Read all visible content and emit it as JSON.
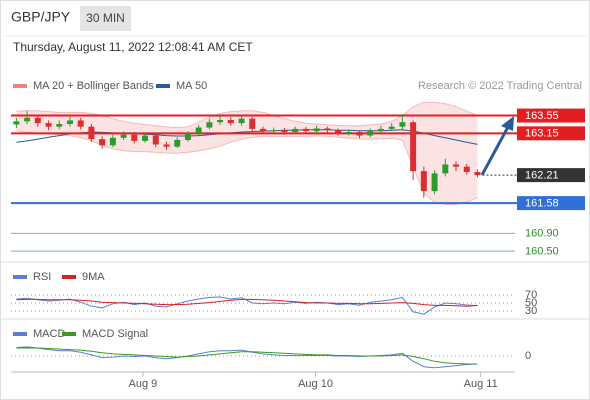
{
  "header": {
    "symbol": "GBP/JPY",
    "interval": "30 MIN",
    "timestamp": "Thursday, August 11, 2022 12:08:41 AM CET"
  },
  "chart_data": [
    {
      "type": "candlestick",
      "source": "Research © 2022 Trading Central",
      "x": [
        0,
        1,
        2,
        3,
        4,
        5,
        6,
        7,
        8,
        9,
        10,
        11,
        12,
        13,
        14,
        15,
        16,
        17,
        18,
        19,
        20,
        21,
        22,
        23,
        24,
        25,
        26,
        27,
        28,
        29,
        30,
        31,
        32,
        33,
        34,
        35,
        36,
        37,
        38,
        39,
        40,
        41,
        42,
        43
      ],
      "xlim": [
        -0.5,
        46.5
      ],
      "xticks": [
        {
          "value": 11.8,
          "label": "Aug 9"
        },
        {
          "value": 27.9,
          "label": "Aug 10"
        },
        {
          "value": 43.3,
          "label": "Aug 11"
        }
      ],
      "ylim": [
        160.3,
        163.9
      ],
      "up_color": "#2e9a2e",
      "down_color": "#d83030",
      "open": [
        163.35,
        163.42,
        163.5,
        163.38,
        163.3,
        163.36,
        163.44,
        163.3,
        163.02,
        162.88,
        163.05,
        163.12,
        162.98,
        163.1,
        162.9,
        162.85,
        163.0,
        163.15,
        163.28,
        163.4,
        163.45,
        163.38,
        163.48,
        163.25,
        163.2,
        163.22,
        163.18,
        163.25,
        163.2,
        163.26,
        163.22,
        163.15,
        163.18,
        163.1,
        163.2,
        163.25,
        163.3,
        163.4,
        162.3,
        161.85,
        162.25,
        162.45,
        162.4,
        162.28
      ],
      "high": [
        163.5,
        163.65,
        163.56,
        163.44,
        163.44,
        163.52,
        163.5,
        163.36,
        163.08,
        163.12,
        163.2,
        163.18,
        163.16,
        163.14,
        162.96,
        163.06,
        163.2,
        163.34,
        163.48,
        163.56,
        163.52,
        163.55,
        163.52,
        163.3,
        163.28,
        163.27,
        163.3,
        163.29,
        163.32,
        163.3,
        163.26,
        163.24,
        163.22,
        163.26,
        163.32,
        163.38,
        163.58,
        163.44,
        162.4,
        162.32,
        162.58,
        162.52,
        162.46,
        162.34
      ],
      "low": [
        163.27,
        163.36,
        163.3,
        163.22,
        163.24,
        163.3,
        163.24,
        162.96,
        162.8,
        162.84,
        163.0,
        162.92,
        162.94,
        162.84,
        162.78,
        162.82,
        162.96,
        163.1,
        163.24,
        163.34,
        163.32,
        163.32,
        163.2,
        163.14,
        163.15,
        163.12,
        163.14,
        163.15,
        163.16,
        163.17,
        163.1,
        163.1,
        163.04,
        163.06,
        163.16,
        163.2,
        163.24,
        162.1,
        161.7,
        161.78,
        162.18,
        162.3,
        162.22,
        162.16
      ],
      "close": [
        163.42,
        163.5,
        163.38,
        163.3,
        163.36,
        163.44,
        163.3,
        163.02,
        162.88,
        163.05,
        163.12,
        162.98,
        163.1,
        162.9,
        162.85,
        163.0,
        163.15,
        163.28,
        163.4,
        163.45,
        163.38,
        163.48,
        163.25,
        163.2,
        163.22,
        163.18,
        163.25,
        163.2,
        163.26,
        163.22,
        163.15,
        163.18,
        163.1,
        163.2,
        163.25,
        163.3,
        163.4,
        162.3,
        161.85,
        162.25,
        162.45,
        162.4,
        162.28,
        162.21
      ],
      "bands": {
        "name": "MA 20 + Bollinger Bands",
        "color": "#f08080",
        "upper": [
          163.65,
          163.66,
          163.66,
          163.64,
          163.62,
          163.62,
          163.62,
          163.6,
          163.55,
          163.48,
          163.42,
          163.38,
          163.35,
          163.32,
          163.3,
          163.28,
          163.3,
          163.4,
          163.52,
          163.6,
          163.64,
          163.66,
          163.66,
          163.62,
          163.55,
          163.48,
          163.42,
          163.38,
          163.36,
          163.34,
          163.33,
          163.32,
          163.32,
          163.34,
          163.36,
          163.42,
          163.55,
          163.75,
          163.85,
          163.85,
          163.82,
          163.75,
          163.65,
          163.55
        ],
        "lower": [
          163.2,
          163.18,
          163.16,
          163.14,
          163.12,
          163.1,
          163.05,
          162.98,
          162.88,
          162.8,
          162.76,
          162.74,
          162.74,
          162.72,
          162.7,
          162.7,
          162.72,
          162.76,
          162.8,
          162.86,
          162.95,
          163.02,
          163.06,
          163.08,
          163.08,
          163.08,
          163.08,
          163.08,
          163.09,
          163.08,
          163.06,
          163.04,
          163.02,
          163.02,
          163.03,
          163.04,
          163.0,
          162.4,
          161.8,
          161.6,
          161.55,
          161.55,
          161.6,
          161.7
        ]
      },
      "ma50": {
        "name": "MA 50",
        "color": "#2a5a9a",
        "values": [
          162.95,
          162.98,
          163.02,
          163.06,
          163.1,
          163.14,
          163.16,
          163.18,
          163.17,
          163.16,
          163.15,
          163.14,
          163.13,
          163.12,
          163.1,
          163.09,
          163.09,
          163.1,
          163.12,
          163.14,
          163.16,
          163.18,
          163.19,
          163.2,
          163.21,
          163.22,
          163.22,
          163.23,
          163.23,
          163.23,
          163.22,
          163.22,
          163.21,
          163.21,
          163.21,
          163.22,
          163.23,
          163.2,
          163.15,
          163.1,
          163.05,
          163.0,
          162.95,
          162.9
        ]
      },
      "levels": [
        {
          "value": 163.55,
          "color": "#e02020",
          "style": "box",
          "line": "solid"
        },
        {
          "value": 163.15,
          "color": "#e02020",
          "style": "box",
          "line": "solid"
        },
        {
          "value": 162.21,
          "color": "#333333",
          "style": "box",
          "line": "dotted"
        },
        {
          "value": 161.58,
          "color": "#2f6fd8",
          "style": "box",
          "line": "solid"
        },
        {
          "value": 160.9,
          "label": "160.90",
          "color": "#2e8b2e",
          "style": "text",
          "line": "solid"
        },
        {
          "value": 160.5,
          "label": "160.50",
          "color": "#2e8b2e",
          "style": "text",
          "line": "solid"
        }
      ]
    },
    {
      "type": "line",
      "ylim": [
        10,
        90
      ],
      "yticks": [
        70,
        50,
        30
      ],
      "series": [
        {
          "name": "RSI",
          "color": "#5b7fd6",
          "values": [
            60,
            62,
            58,
            55,
            57,
            60,
            52,
            42,
            38,
            48,
            52,
            46,
            50,
            42,
            40,
            48,
            55,
            60,
            64,
            65,
            60,
            63,
            50,
            48,
            50,
            48,
            52,
            49,
            52,
            50,
            46,
            48,
            44,
            52,
            55,
            58,
            64,
            28,
            22,
            40,
            50,
            48,
            45,
            43
          ]
        },
        {
          "name": "9MA",
          "color": "#d82020",
          "values": [
            58,
            59,
            59,
            58,
            58,
            58,
            57,
            55,
            52,
            51,
            50,
            49,
            48,
            47,
            46,
            46,
            47,
            49,
            51,
            54,
            57,
            59,
            59,
            58,
            57,
            55,
            53,
            51,
            50,
            50,
            49,
            49,
            48,
            48,
            49,
            50,
            51,
            49,
            46,
            44,
            44,
            43,
            42,
            44
          ]
        }
      ]
    },
    {
      "type": "line",
      "ylim": [
        -0.3,
        0.3
      ],
      "yticks": [
        0
      ],
      "series": [
        {
          "name": "MACD",
          "color": "#5b7fd6",
          "values": [
            0.16,
            0.17,
            0.15,
            0.12,
            0.1,
            0.1,
            0.07,
            0.02,
            -0.03,
            -0.02,
            0.0,
            -0.01,
            0.0,
            -0.03,
            -0.05,
            -0.03,
            0.0,
            0.04,
            0.08,
            0.1,
            0.1,
            0.11,
            0.07,
            0.04,
            0.02,
            0.01,
            0.01,
            0.01,
            0.01,
            0.01,
            0.0,
            0.0,
            -0.01,
            0.0,
            0.01,
            0.02,
            0.05,
            -0.1,
            -0.2,
            -0.22,
            -0.2,
            -0.18,
            -0.16,
            -0.15
          ]
        },
        {
          "name": "MACD Signal",
          "color": "#3a9a20",
          "values": [
            0.15,
            0.15,
            0.15,
            0.14,
            0.13,
            0.12,
            0.11,
            0.09,
            0.06,
            0.04,
            0.03,
            0.02,
            0.01,
            0.0,
            -0.01,
            -0.02,
            -0.01,
            0.0,
            0.02,
            0.04,
            0.06,
            0.08,
            0.08,
            0.07,
            0.06,
            0.05,
            0.04,
            0.03,
            0.02,
            0.02,
            0.01,
            0.01,
            0.0,
            0.0,
            0.0,
            0.01,
            0.02,
            -0.01,
            -0.05,
            -0.1,
            -0.13,
            -0.14,
            -0.15,
            -0.15
          ]
        }
      ]
    }
  ]
}
